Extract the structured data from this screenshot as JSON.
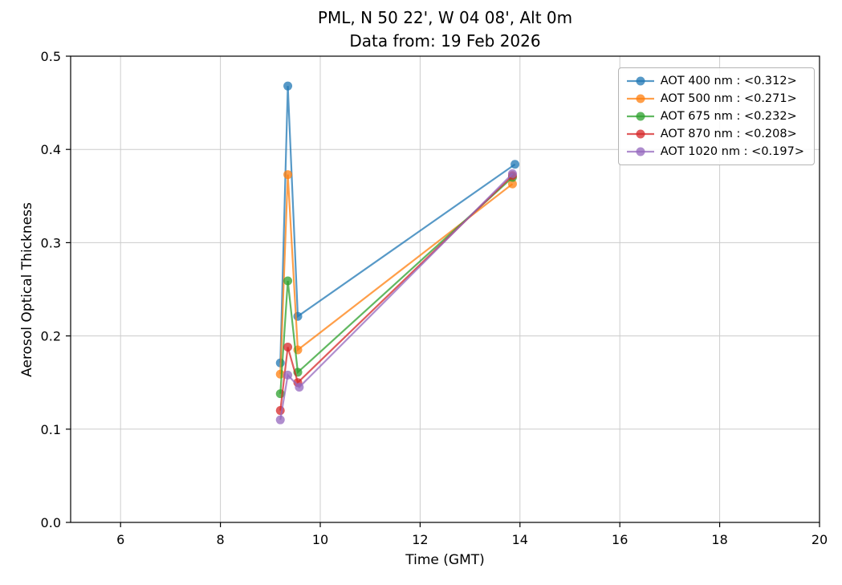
{
  "figure": {
    "title_line1": "PML, N 50 22', W 04 08', Alt 0m",
    "title_line2": "Data from: 19 Feb 2026"
  },
  "chart_data": {
    "type": "line",
    "title": "PML, N 50 22', W 04 08', Alt 0m",
    "subtitle": "Data from: 19 Feb 2026",
    "xlabel": "Time (GMT)",
    "ylabel": "Aerosol Optical Thickness",
    "xlim": [
      5,
      20
    ],
    "ylim": [
      0.0,
      0.5
    ],
    "xticks": [
      6,
      8,
      10,
      12,
      14,
      16,
      18,
      20
    ],
    "yticks": [
      0.0,
      0.1,
      0.2,
      0.3,
      0.4,
      0.5
    ],
    "grid": true,
    "legend_position": "upper right",
    "marker": "circle",
    "alpha": 0.75,
    "series": [
      {
        "name": "AOT 400 nm : <0.312>",
        "color": "#1f77b4",
        "x": [
          9.2,
          9.35,
          9.55,
          13.9
        ],
        "y": [
          0.171,
          0.468,
          0.221,
          0.384
        ]
      },
      {
        "name": "AOT 500 nm : <0.271>",
        "color": "#ff7f0e",
        "x": [
          9.2,
          9.35,
          9.55,
          13.85
        ],
        "y": [
          0.159,
          0.373,
          0.185,
          0.363
        ]
      },
      {
        "name": "AOT 675 nm : <0.232>",
        "color": "#2ca02c",
        "x": [
          9.2,
          9.35,
          9.55,
          13.85
        ],
        "y": [
          0.138,
          0.259,
          0.161,
          0.37
        ]
      },
      {
        "name": "AOT 870 nm : <0.208>",
        "color": "#d62728",
        "x": [
          9.2,
          9.35,
          9.55,
          13.85
        ],
        "y": [
          0.12,
          0.188,
          0.15,
          0.372
        ]
      },
      {
        "name": "AOT 1020 nm : <0.197>",
        "color": "#9467bd",
        "x": [
          9.2,
          9.35,
          9.58,
          13.85
        ],
        "y": [
          0.11,
          0.158,
          0.145,
          0.374
        ]
      }
    ]
  }
}
